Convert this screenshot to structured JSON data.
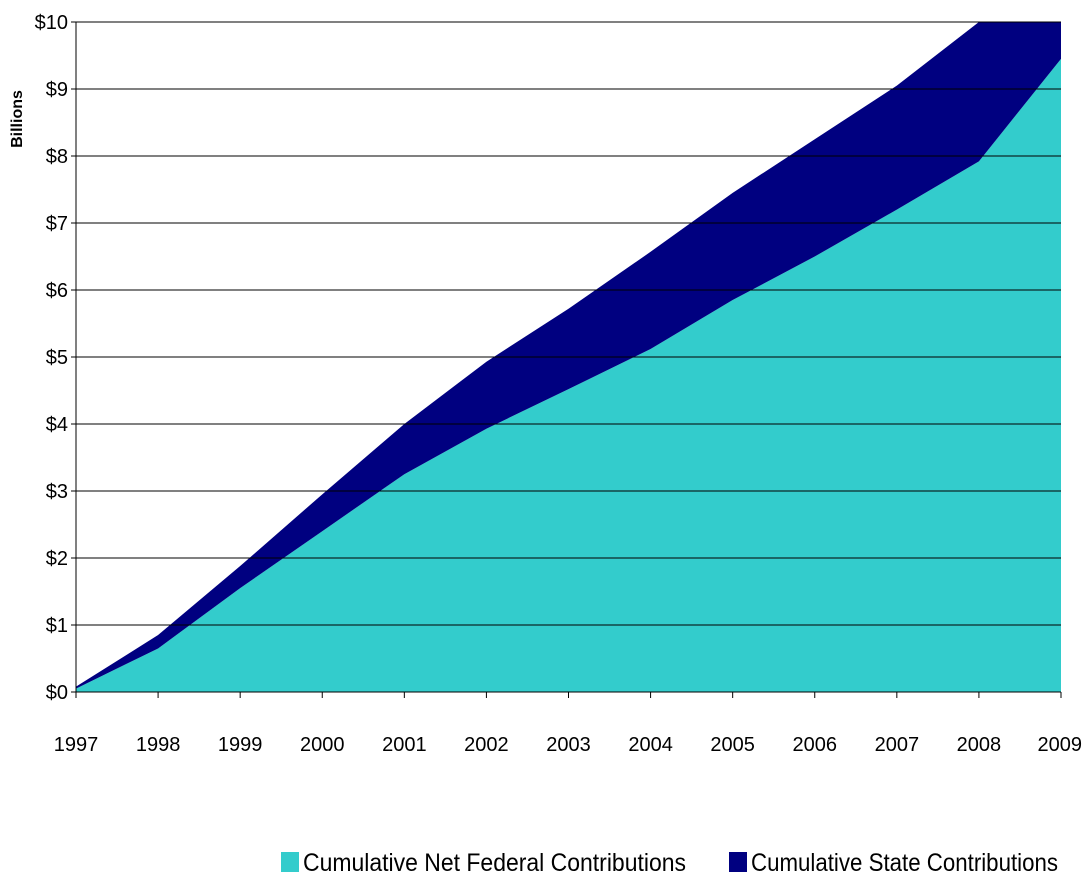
{
  "chart_data": {
    "type": "area",
    "stacked": true,
    "title": "",
    "xlabel": "",
    "ylabel": "Billions",
    "x": [
      "1997",
      "1998",
      "1999",
      "2000",
      "2001",
      "2002",
      "2003",
      "2004",
      "2005",
      "2006",
      "2007",
      "2008",
      "2009"
    ],
    "y_ticks": [
      "$0",
      "$1",
      "$2",
      "$3",
      "$4",
      "$5",
      "$6",
      "$7",
      "$8",
      "$9",
      "$10"
    ],
    "ylim": [
      0,
      10
    ],
    "grid": "horizontal",
    "legend_position": "bottom-right",
    "series": [
      {
        "name": "Cumulative Net Federal Contributions",
        "color": "#33cccc",
        "values": [
          0.05,
          0.65,
          1.55,
          2.4,
          3.25,
          3.93,
          4.52,
          5.12,
          5.85,
          6.5,
          7.2,
          7.92,
          9.45
        ]
      },
      {
        "name": "Cumulative State Contributions",
        "color": "#000080",
        "values": [
          0.03,
          0.2,
          0.33,
          0.55,
          0.75,
          1.0,
          1.2,
          1.45,
          1.6,
          1.75,
          1.85,
          2.1,
          0.58
        ]
      }
    ]
  }
}
